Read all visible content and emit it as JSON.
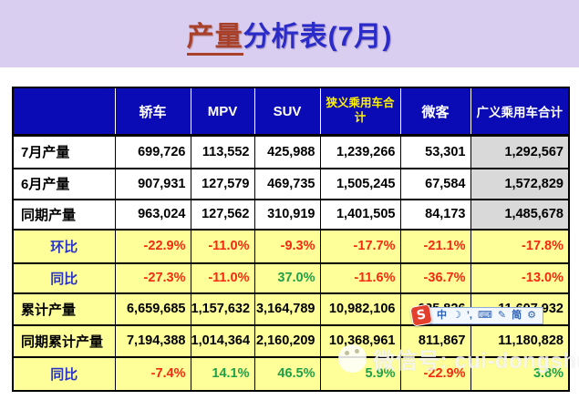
{
  "title": {
    "highlight": "产量",
    "rest": "分析表(7月)"
  },
  "colors": {
    "title_band": "#D9CDF0",
    "title_blue": "#2B2BC8",
    "title_red": "#A8402A",
    "header_blue": "#0B0BB5",
    "header_text": "#FFFFFF",
    "header_accent_text": "#FFF200",
    "row_yellow": "#FFFF99",
    "cell_gray": "#D9D9D9",
    "negative_red": "#F52A10",
    "positive_green": "#1FA049",
    "label_blue": "#2A35C8"
  },
  "table": {
    "columns": [
      {
        "label": ""
      },
      {
        "label": "轿车"
      },
      {
        "label": "MPV"
      },
      {
        "label": "SUV"
      },
      {
        "label": "狭义乘用车合计",
        "accent": true
      },
      {
        "label": "微客"
      },
      {
        "label": "广义乘用车合计",
        "wide": true
      }
    ],
    "rows": [
      {
        "label": "7月产量",
        "center": false,
        "bg": "white",
        "gray_last": true,
        "cells": [
          {
            "v": "699,726",
            "c": "black"
          },
          {
            "v": "113,552",
            "c": "black"
          },
          {
            "v": "425,988",
            "c": "black"
          },
          {
            "v": "1,239,266",
            "c": "black"
          },
          {
            "v": "53,301",
            "c": "black"
          },
          {
            "v": "1,292,567",
            "c": "black"
          }
        ]
      },
      {
        "label": "6月产量",
        "center": false,
        "bg": "white",
        "gray_last": true,
        "cells": [
          {
            "v": "907,931",
            "c": "black"
          },
          {
            "v": "127,579",
            "c": "black"
          },
          {
            "v": "469,735",
            "c": "black"
          },
          {
            "v": "1,505,245",
            "c": "black"
          },
          {
            "v": "67,584",
            "c": "black"
          },
          {
            "v": "1,572,829",
            "c": "black"
          }
        ]
      },
      {
        "label": "同期产量",
        "center": false,
        "bg": "white",
        "gray_last": true,
        "cells": [
          {
            "v": "963,024",
            "c": "black"
          },
          {
            "v": "127,562",
            "c": "black"
          },
          {
            "v": "310,919",
            "c": "black"
          },
          {
            "v": "1,401,505",
            "c": "black"
          },
          {
            "v": "84,173",
            "c": "black"
          },
          {
            "v": "1,485,678",
            "c": "black"
          }
        ]
      },
      {
        "label": "环比",
        "center": true,
        "bg": "yellow",
        "gray_last": false,
        "cells": [
          {
            "v": "-22.9%",
            "c": "red"
          },
          {
            "v": "-11.0%",
            "c": "red"
          },
          {
            "v": "-9.3%",
            "c": "red"
          },
          {
            "v": "-17.7%",
            "c": "red"
          },
          {
            "v": "-21.1%",
            "c": "red"
          },
          {
            "v": "-17.8%",
            "c": "red"
          }
        ]
      },
      {
        "label": "同比",
        "center": true,
        "bg": "yellow",
        "gray_last": false,
        "cells": [
          {
            "v": "-27.3%",
            "c": "red"
          },
          {
            "v": "-11.0%",
            "c": "red"
          },
          {
            "v": "37.0%",
            "c": "green"
          },
          {
            "v": "-11.6%",
            "c": "red"
          },
          {
            "v": "-36.7%",
            "c": "red"
          },
          {
            "v": "-13.0%",
            "c": "red"
          }
        ]
      },
      {
        "label": "累计产量",
        "center": false,
        "bg": "yellow",
        "gray_last": false,
        "cells": [
          {
            "v": "6,659,685",
            "c": "black"
          },
          {
            "v": "1,157,632",
            "c": "black"
          },
          {
            "v": "3,164,789",
            "c": "black"
          },
          {
            "v": "10,982,106",
            "c": "black"
          },
          {
            "v": "625,826",
            "c": "black"
          },
          {
            "v": "11,607,932",
            "c": "black"
          }
        ]
      },
      {
        "label": "同期累计产量",
        "center": false,
        "bg": "yellow",
        "gray_last": false,
        "cells": [
          {
            "v": "7,194,388",
            "c": "black"
          },
          {
            "v": "1,014,364",
            "c": "black"
          },
          {
            "v": "2,160,209",
            "c": "black"
          },
          {
            "v": "10,368,961",
            "c": "black"
          },
          {
            "v": "811,867",
            "c": "black"
          },
          {
            "v": "11,180,828",
            "c": "black"
          }
        ]
      },
      {
        "label": "同比",
        "center": true,
        "bg": "yellow",
        "gray_last": false,
        "cells": [
          {
            "v": "-7.4%",
            "c": "red"
          },
          {
            "v": "14.1%",
            "c": "green"
          },
          {
            "v": "46.5%",
            "c": "green"
          },
          {
            "v": "5.9%",
            "c": "green"
          },
          {
            "v": "-22.9%",
            "c": "red"
          },
          {
            "v": "3.8%",
            "c": "green"
          }
        ]
      }
    ]
  },
  "watermarks": {
    "ime_toolbar": {
      "logo": "S",
      "items": [
        {
          "name": "chinese-mode-icon",
          "glyph": "中"
        },
        {
          "name": "moon-icon",
          "glyph": "☽"
        },
        {
          "name": "punctuation-icon",
          "glyph": "’,"
        },
        {
          "name": "keyboard-icon",
          "glyph": "⌨"
        },
        {
          "name": "handwriting-icon",
          "glyph": "✎"
        },
        {
          "name": "simplified-chinese-icon",
          "glyph": "简"
        },
        {
          "name": "wrench-icon",
          "glyph": "⚙"
        }
      ]
    },
    "wechat": {
      "label": "微信号: cui-dongshu"
    }
  }
}
